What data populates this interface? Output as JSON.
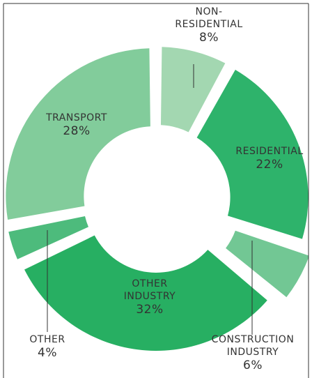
{
  "chart_data": {
    "type": "donut",
    "categories": [
      "NON-RESIDENTIAL",
      "RESIDENTIAL",
      "CONSTRUCTION INDUSTRY",
      "OTHER INDUSTRY",
      "OTHER",
      "TRANSPORT"
    ],
    "values": [
      8,
      22,
      6,
      32,
      4,
      28
    ],
    "value_labels": [
      "8%",
      "22%",
      "6%",
      "32%",
      "4%",
      "28%"
    ],
    "colors": [
      "#a3d7b1",
      "#2eb36b",
      "#72c794",
      "#27af62",
      "#4dbb7c",
      "#82cc9b"
    ]
  }
}
